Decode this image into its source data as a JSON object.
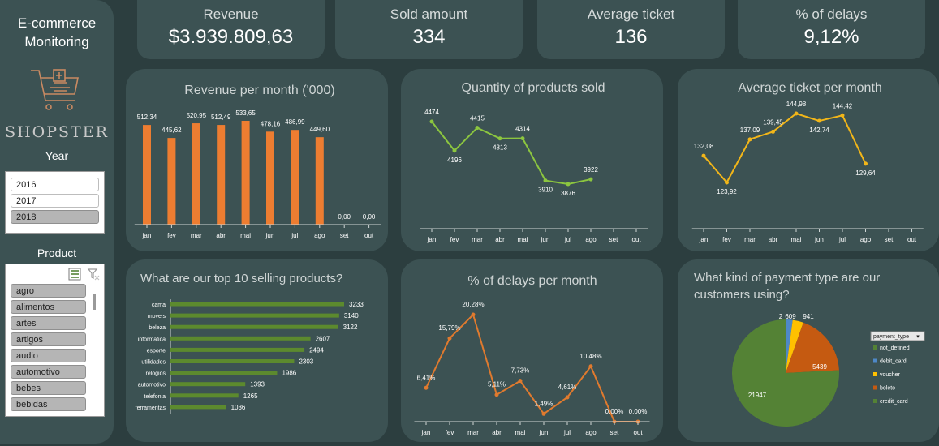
{
  "app": {
    "title_line1": "E-commerce",
    "title_line2": "Monitoring",
    "brand": "SHOPSTER"
  },
  "year_slicer": {
    "title": "Year",
    "items": [
      "2016",
      "2017",
      "2018"
    ],
    "selected": "2018"
  },
  "product_slicer": {
    "title": "Product",
    "items": [
      "agro",
      "alimentos",
      "artes",
      "artigos",
      "audio",
      "automotivo",
      "bebes",
      "bebidas"
    ]
  },
  "kpis": [
    {
      "label": "Revenue",
      "value": "$3.939.809,63"
    },
    {
      "label": "Sold amount",
      "value": "334"
    },
    {
      "label": "Average ticket",
      "value": "136"
    },
    {
      "label": "% of delays",
      "value": "9,12%"
    }
  ],
  "colors": {
    "orange": "#ed7d31",
    "green": "#8cc63f",
    "yellow": "#f2b619",
    "delay": "#e07a2e",
    "bar_green": "#5c8a2e"
  },
  "chart_data": [
    {
      "id": "revenue",
      "type": "bar",
      "title": "Revenue per month ('000)",
      "categories": [
        "jan",
        "fev",
        "mar",
        "abr",
        "mai",
        "jun",
        "jul",
        "ago",
        "set",
        "out"
      ],
      "values": [
        512.34,
        445.62,
        520.95,
        512.49,
        533.65,
        478.16,
        486.99,
        449.6,
        0,
        0
      ],
      "labels": [
        "512,34",
        "445,62",
        "520,95",
        "512,49",
        "533,65",
        "478,16",
        "486,99",
        "449,60",
        "0,00",
        "0,00"
      ],
      "ylim": [
        0,
        600
      ]
    },
    {
      "id": "quantity",
      "type": "line",
      "title": "Quantity of products sold",
      "categories": [
        "jan",
        "fev",
        "mar",
        "abr",
        "mai",
        "jun",
        "jul",
        "ago",
        "set",
        "out"
      ],
      "values": [
        4474,
        4196,
        4415,
        4313,
        4314,
        3910,
        3876,
        3922
      ],
      "labels": [
        "4474",
        "4196",
        "4415",
        "4313",
        "4314",
        "3910",
        "3876",
        "3922"
      ]
    },
    {
      "id": "avgticket",
      "type": "line",
      "title": "Average ticket per month",
      "categories": [
        "jan",
        "fev",
        "mar",
        "abr",
        "mai",
        "jun",
        "jul",
        "ago",
        "set",
        "out"
      ],
      "values": [
        132.08,
        123.92,
        137.09,
        139.45,
        144.98,
        142.74,
        144.42,
        129.64
      ],
      "labels": [
        "132,08",
        "123,92",
        "137,09",
        "139,45",
        "144,98",
        "142,74",
        "144,42",
        "129,64"
      ]
    },
    {
      "id": "top10",
      "type": "bar",
      "orientation": "horizontal",
      "title": "What are our top 10 selling products?",
      "categories": [
        "cama",
        "moveis",
        "beleza",
        "informatica",
        "esporte",
        "utilidades",
        "relogios",
        "automotivo",
        "telefonia",
        "ferramentas"
      ],
      "values": [
        3233,
        3140,
        3122,
        2607,
        2494,
        2303,
        1986,
        1393,
        1265,
        1036
      ]
    },
    {
      "id": "delays",
      "type": "line",
      "title": "% of delays per month",
      "categories": [
        "jan",
        "fev",
        "mar",
        "abr",
        "mai",
        "jun",
        "jul",
        "ago",
        "set",
        "out"
      ],
      "values": [
        6.41,
        15.79,
        20.28,
        5.11,
        7.73,
        1.49,
        4.61,
        10.48,
        0,
        0
      ],
      "labels": [
        "6,41%",
        "15,79%",
        "20,28%",
        "5,11%",
        "7,73%",
        "1,49%",
        "4,61%",
        "10,48%",
        "0,00%",
        "0,00%"
      ]
    },
    {
      "id": "payment",
      "type": "pie",
      "title": "What kind of payment type are our customers using?",
      "legend_title": "payment_type",
      "legend_position": "right",
      "slices": [
        {
          "name": "not_defined",
          "value": 2,
          "color": "#548235"
        },
        {
          "name": "debit_card",
          "value": 609,
          "color": "#4e88c7"
        },
        {
          "name": "voucher",
          "value": 941,
          "color": "#ffc000"
        },
        {
          "name": "boleto",
          "value": 5439,
          "color": "#c55a11"
        },
        {
          "name": "credit_card",
          "value": 21947,
          "color": "#548235"
        }
      ]
    }
  ]
}
